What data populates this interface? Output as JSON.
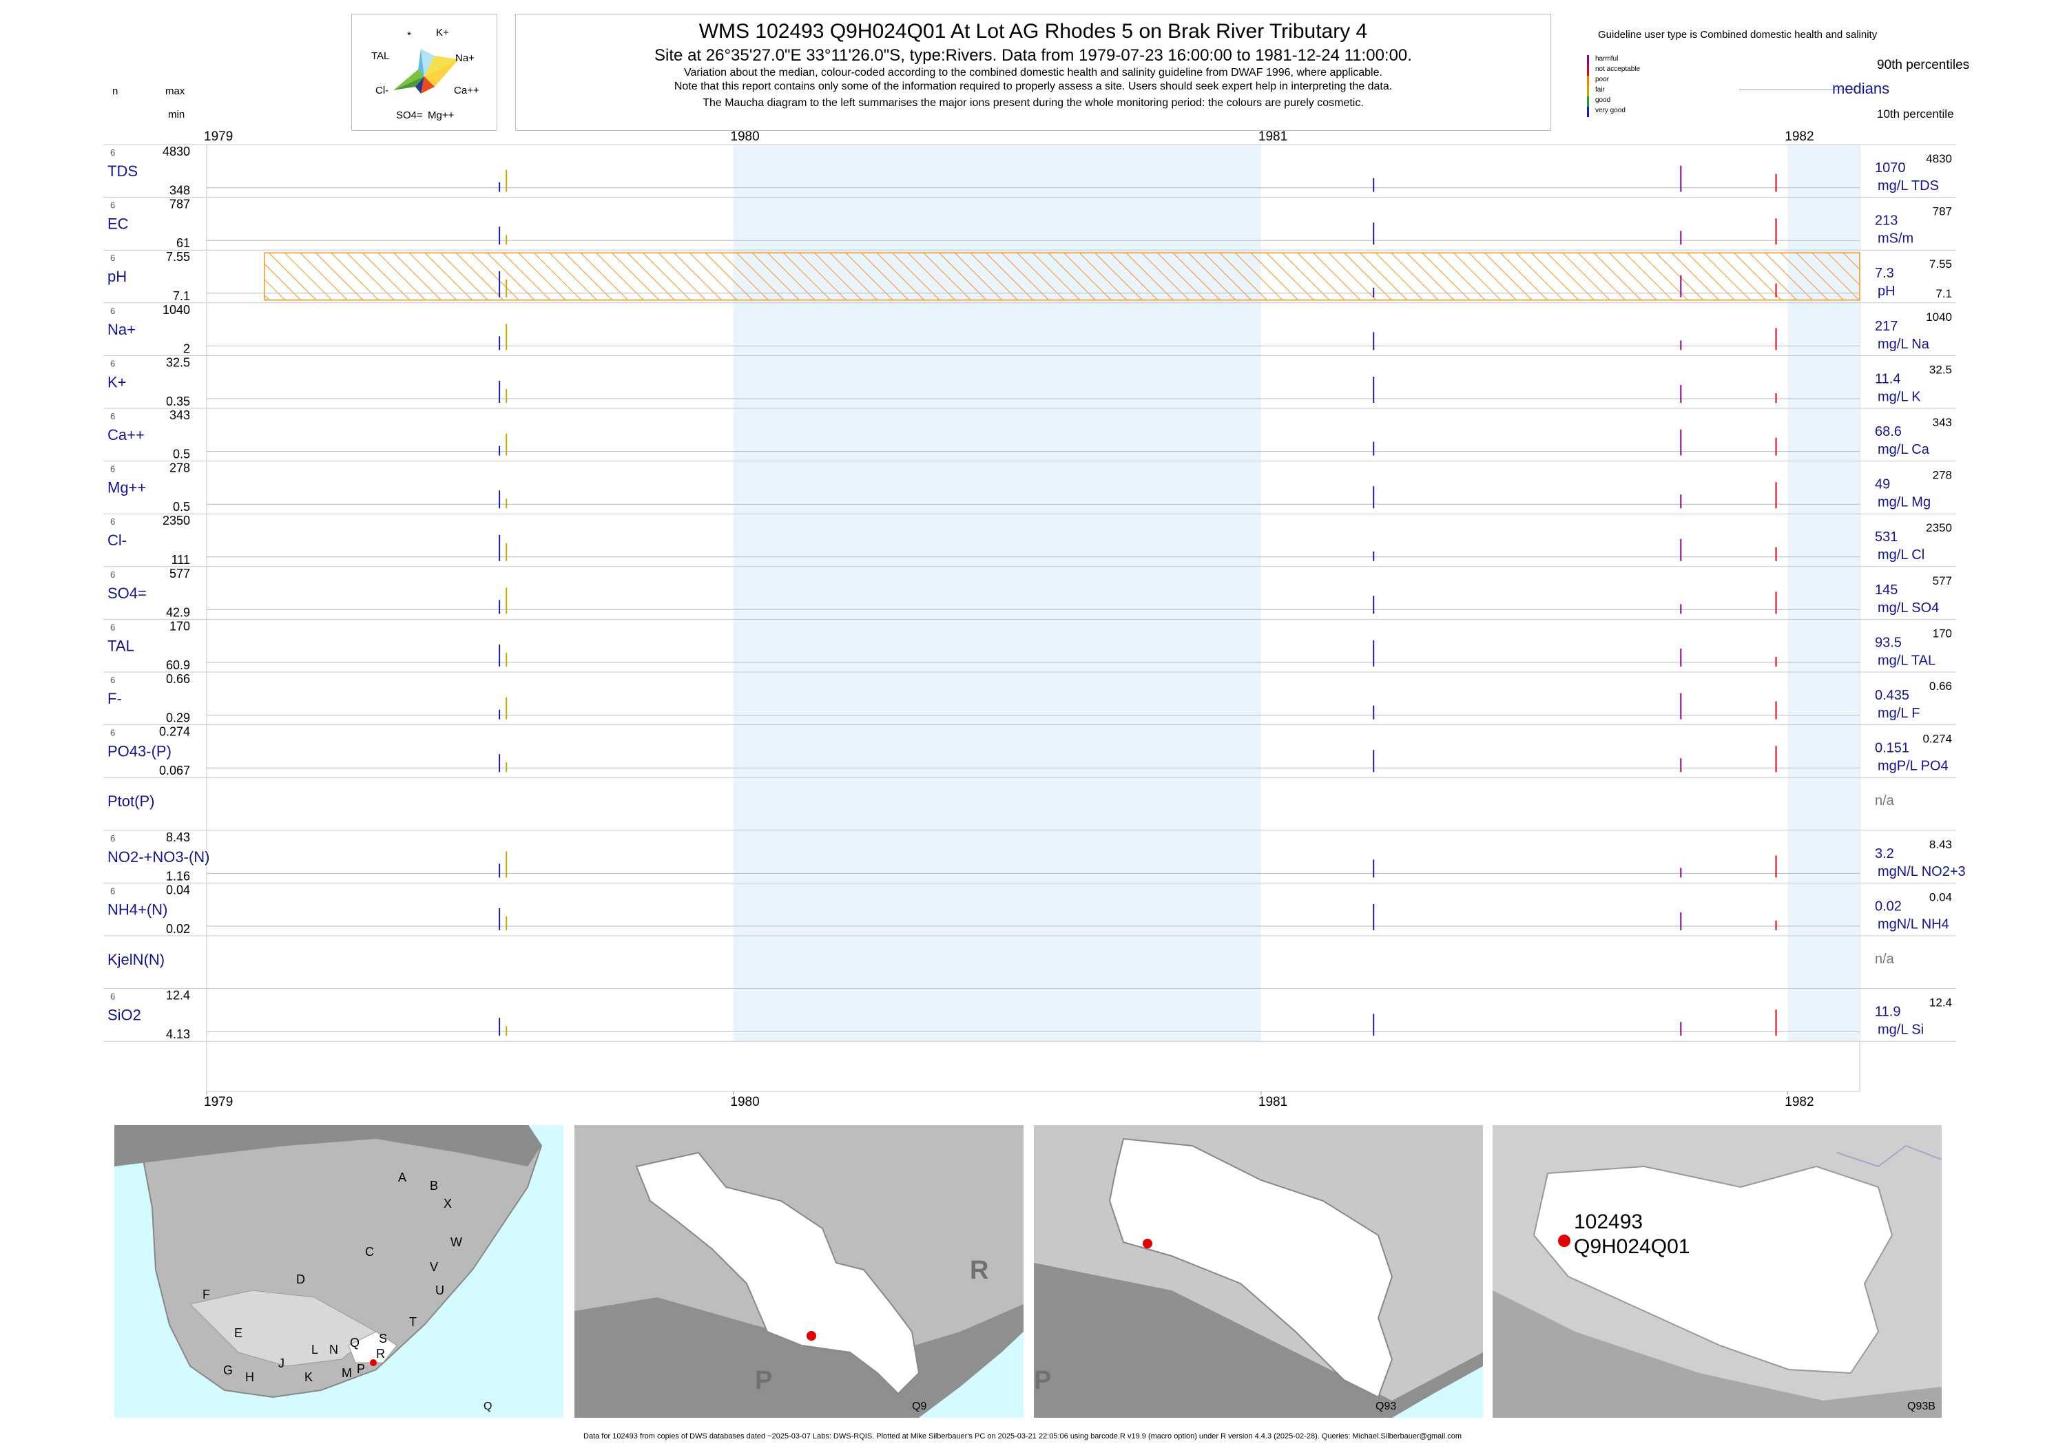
{
  "header": {
    "title": "WMS 102493 Q9H024Q01 At Lot AG Rhodes 5 on Brak River Tributary 4",
    "subtitle": "Site at 26°35'27.0\"E 33°11'26.0\"S, type:Rivers.  Data from 1979-07-23 16:00:00 to 1981-12-24 11:00:00.",
    "note1": "Variation about the median,  colour-coded according to the combined domestic health and salinity guideline from DWAF 1996, where applicable.",
    "note2": "Note that this report contains only some of the information required to properly assess a site. Users should seek expert help in interpreting the data.",
    "note3": "The Maucha diagram to the left summarises the major ions present during the whole monitoring period: the colours are purely cosmetic."
  },
  "left_header": {
    "n": "n",
    "max": "max",
    "min": "min"
  },
  "maucha": {
    "labels": [
      "*",
      "K+",
      "TAL",
      "Na+",
      "Cl-",
      "Ca++",
      "SO4=",
      "Mg++"
    ]
  },
  "guideline": {
    "title": "Guideline user type is Combined domestic health and salinity",
    "classes": [
      {
        "label": "harmful",
        "color": "#8b008b"
      },
      {
        "label": "not acceptable",
        "color": "#e0001a"
      },
      {
        "label": "poor",
        "color": "#ff7f00"
      },
      {
        "label": "fair",
        "color": "#c8a800"
      },
      {
        "label": "good",
        "color": "#1f9e3a"
      },
      {
        "label": "very good",
        "color": "#1a1aa8"
      }
    ],
    "p90_label": "90th percentiles",
    "median_label": "medians",
    "p10_label": "10th percentile"
  },
  "chart_data": {
    "type": "strip-timeseries",
    "x_range": [
      "1979-07-23",
      "1981-12-24"
    ],
    "year_ticks": [
      "1979",
      "1980",
      "1981",
      "1982"
    ],
    "highlight_years": [
      "1980",
      "1982"
    ],
    "ph_guideline_band": [
      7.1,
      7.55
    ],
    "sample_dates": [
      "1979-07-23",
      "1979-07-24",
      "1981-03-20",
      "1981-10-19",
      "1981-12-24"
    ],
    "panels": [
      {
        "key": "TDS",
        "label": "TDS",
        "n": "6",
        "max": "4830",
        "min": "348",
        "median": "1070",
        "unit": "mg/L TDS",
        "p90": "4830"
      },
      {
        "key": "EC",
        "label": "EC",
        "n": "6",
        "max": "787",
        "min": "61",
        "median": "213",
        "unit": "mS/m",
        "p90": "787"
      },
      {
        "key": "pH",
        "label": "pH",
        "n": "6",
        "max": "7.55",
        "min": "7.1",
        "median": "7.3",
        "unit": "pH",
        "p90": "7.55",
        "p10": "7.1"
      },
      {
        "key": "Na",
        "label": "Na+",
        "n": "6",
        "max": "1040",
        "min": "2",
        "median": "217",
        "unit": "mg/L Na",
        "p90": "1040"
      },
      {
        "key": "K",
        "label": "K+",
        "n": "6",
        "max": "32.5",
        "min": "0.35",
        "median": "11.4",
        "unit": "mg/L K",
        "p90": "32.5"
      },
      {
        "key": "Ca",
        "label": "Ca++",
        "n": "6",
        "max": "343",
        "min": "0.5",
        "median": "68.6",
        "unit": "mg/L Ca",
        "p90": "343"
      },
      {
        "key": "Mg",
        "label": "Mg++",
        "n": "6",
        "max": "278",
        "min": "0.5",
        "median": "49",
        "unit": "mg/L Mg",
        "p90": "278"
      },
      {
        "key": "Cl",
        "label": "Cl-",
        "n": "6",
        "max": "2350",
        "min": "111",
        "median": "531",
        "unit": "mg/L Cl",
        "p90": "2350"
      },
      {
        "key": "SO4",
        "label": "SO4=",
        "n": "6",
        "max": "577",
        "min": "42.9",
        "median": "145",
        "unit": "mg/L SO4",
        "p90": "577"
      },
      {
        "key": "TAL",
        "label": "TAL",
        "n": "6",
        "max": "170",
        "min": "60.9",
        "median": "93.5",
        "unit": "mg/L TAL",
        "p90": "170"
      },
      {
        "key": "F",
        "label": "F-",
        "n": "6",
        "max": "0.66",
        "min": "0.29",
        "median": "0.435",
        "unit": "mg/L F",
        "p90": "0.66"
      },
      {
        "key": "PO4",
        "label": "PO43-(P)",
        "n": "6",
        "max": "0.274",
        "min": "0.067",
        "median": "0.151",
        "unit": "mgP/L PO4",
        "p90": "0.274"
      },
      {
        "key": "Ptot",
        "label": "Ptot(P)",
        "n": "",
        "max": "",
        "min": "",
        "median": "n/a",
        "unit": "",
        "p90": ""
      },
      {
        "key": "NOx",
        "label": "NO2-+NO3-(N)",
        "n": "6",
        "max": "8.43",
        "min": "1.16",
        "median": "3.2",
        "unit": "mgN/L NO2+3",
        "p90": "8.43"
      },
      {
        "key": "NH4",
        "label": "NH4+(N)",
        "n": "6",
        "max": "0.04",
        "min": "0.02",
        "median": "0.02",
        "unit": "mgN/L NH4",
        "p90": "0.04"
      },
      {
        "key": "KjelN",
        "label": "KjelN(N)",
        "n": "",
        "max": "",
        "min": "",
        "median": "n/a",
        "unit": "",
        "p90": ""
      },
      {
        "key": "SiO2",
        "label": "SiO2",
        "n": "6",
        "max": "12.4",
        "min": "4.13",
        "median": "11.9",
        "unit": "mg/L Si",
        "p90": "12.4"
      }
    ]
  },
  "maps": {
    "map1_code": "Q",
    "map1_regions": [
      "A",
      "B",
      "X",
      "W",
      "C",
      "V",
      "U",
      "D",
      "T",
      "F",
      "E",
      "G",
      "H",
      "J",
      "K",
      "L",
      "N",
      "M",
      "P",
      "Q",
      "R",
      "S"
    ],
    "map2_code": "Q9",
    "map2_regions": [
      "R",
      "P"
    ],
    "map3_code": "Q93",
    "map3_regions": [
      "P"
    ],
    "map4_code": "Q93B",
    "site_label_1": "102493",
    "site_label_2": "Q9H024Q01"
  },
  "footer": "Data for 102493 from copies of DWS databases dated ~2025-03-07 Labs: DWS-RQIS. Plotted at Mike Silberbauer's PC on 2025-03-21 22:05:06 using barcode.R v19.9 (macro option) under R version 4.4.3 (2025-02-28). Queries: Michael.Silberbauer@gmail.com"
}
